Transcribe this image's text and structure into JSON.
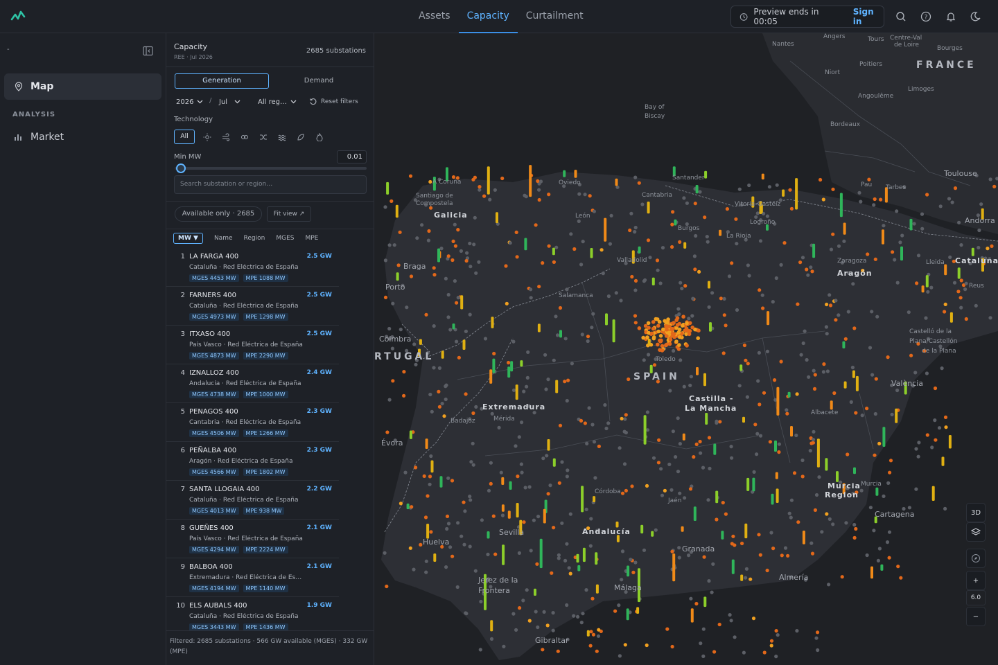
{
  "header": {
    "tabs": [
      {
        "label": "Assets"
      },
      {
        "label": "Capacity"
      },
      {
        "label": "Curtailment"
      }
    ],
    "preview_text": "Preview ends in 00:05",
    "signin_label": "Sign in"
  },
  "sidebar": {
    "dash": "-",
    "map_label": "Map",
    "section_label": "ANALYSIS",
    "market_label": "Market"
  },
  "panel": {
    "title": "Capacity",
    "subtitle": "REE · Jul 2026",
    "count": "2685 substations",
    "mode_generation": "Generation",
    "mode_demand": "Demand",
    "year": "2026",
    "slash": "/",
    "month": "Jul",
    "region": "All reg…",
    "reset_label": "Reset filters",
    "technology_label": "Technology",
    "tech_all": "All",
    "min_mw_label": "Min MW",
    "min_mw_value": "0.01",
    "min_mw_fraction": 0.0,
    "search_placeholder": "Search substation or region…",
    "available_label": "Available only · 2685",
    "fitview_label": "Fit view ↗",
    "sort": {
      "mw": "MW ▼",
      "name": "Name",
      "region": "Region",
      "mges": "MGES",
      "mpe": "MPE"
    },
    "rows": [
      {
        "num": "1",
        "name": "LA FARGA 400",
        "gw": "2.5 GW",
        "loc": "Cataluña · Red Eléctrica de España",
        "mges": "MGES 4453 MW",
        "mpe": "MPE 1088 MW"
      },
      {
        "num": "2",
        "name": "FARNERS 400",
        "gw": "2.5 GW",
        "loc": "Cataluña · Red Eléctrica de España",
        "mges": "MGES 4973 MW",
        "mpe": "MPE 1298 MW"
      },
      {
        "num": "3",
        "name": "ITXASO 400",
        "gw": "2.5 GW",
        "loc": "País Vasco · Red Eléctrica de España",
        "mges": "MGES 4873 MW",
        "mpe": "MPE 2290 MW"
      },
      {
        "num": "4",
        "name": "IZNALLOZ 400",
        "gw": "2.4 GW",
        "loc": "Andalucía · Red Eléctrica de España",
        "mges": "MGES 4738 MW",
        "mpe": "MPE 1000 MW"
      },
      {
        "num": "5",
        "name": "PENAGOS 400",
        "gw": "2.3 GW",
        "loc": "Cantabria · Red Eléctrica de España",
        "mges": "MGES 4506 MW",
        "mpe": "MPE 1266 MW"
      },
      {
        "num": "6",
        "name": "PEÑALBA 400",
        "gw": "2.3 GW",
        "loc": "Aragón · Red Eléctrica de España",
        "mges": "MGES 4566 MW",
        "mpe": "MPE 1802 MW"
      },
      {
        "num": "7",
        "name": "SANTA LLOGAIA 400",
        "gw": "2.2 GW",
        "loc": "Cataluña · Red Eléctrica de España",
        "mges": "MGES 4013 MW",
        "mpe": "MPE 938 MW"
      },
      {
        "num": "8",
        "name": "GUEÑES 400",
        "gw": "2.1 GW",
        "loc": "País Vasco · Red Eléctrica de España",
        "mges": "MGES 4294 MW",
        "mpe": "MPE 2224 MW"
      },
      {
        "num": "9",
        "name": "BALBOA 400",
        "gw": "2.1 GW",
        "loc": "Extremadura · Red Eléctrica de Es…",
        "mges": "MGES 4194 MW",
        "mpe": "MPE 1140 MW"
      },
      {
        "num": "10",
        "name": "ELS AUBALS 400",
        "gw": "1.9 GW",
        "loc": "Cataluña · Red Eléctrica de España",
        "mges": "MGES 3443 MW",
        "mpe": "MPE 1436 MW"
      }
    ],
    "footer": "Filtered: 2685 substations · 566 GW available (MGES) · 332 GW (MPE)"
  },
  "map": {
    "labels": {
      "angers": "Angers",
      "tours": "Tours",
      "centre": "Centre-Val",
      "deloire": "de Loire",
      "nantes": "Nantes",
      "bourges": "Bourges",
      "france": "FRANCE",
      "poitiers": "Poitiers",
      "niort": "Niort",
      "limoges": "Limoges",
      "angouleme": "Angoulême",
      "bay1": "Bay of",
      "bay2": "Biscay",
      "bordeaux": "Bordeaux",
      "toulouse": "Toulouse",
      "pau": "Pau",
      "tarbes": "Tarbes",
      "andorra": "Andorra",
      "acoruna": "A Coruña",
      "santiago1": "Santiago de",
      "santiago2": "Compostela",
      "galicia": "Galicia",
      "oviedo": "Oviedo",
      "santander": "Santander",
      "cantabria": "Cantabria",
      "vitoria": "Vitoria-Gasteiz",
      "leon": "León",
      "burgos": "Burgos",
      "logrono": "Logroño",
      "larioja": "La Rioja",
      "zaragoza": "Zaragoza",
      "aragon": "Aragón",
      "lleida": "Lleida",
      "cataluna": "Cataluña",
      "reus": "Reus",
      "braga": "Braga",
      "porto": "Porto",
      "valladolid": "Valladolid",
      "salamanca": "Salamanca",
      "coimbra": "Coimbra",
      "portugal": "RTUGAL",
      "toledo": "Toledo",
      "spain": "SPAIN",
      "castellon1": "Castelló de la",
      "castellon2": "Plana/Castellón",
      "castellon3": "de la Plana",
      "valencia": "València",
      "extremadura": "Extremadura",
      "castilla1": "Castilla -",
      "castilla2": "La Mancha",
      "badajoz": "Badajoz",
      "merida": "Mérida",
      "albacete": "Albacete",
      "evora": "Évora",
      "murcia1": "Murcia",
      "murcia2": "Region",
      "murcia": "Murcia",
      "cordoba": "Córdoba",
      "jaen": "Jaén",
      "cartagena": "Cartagena",
      "andalucia": "Andalucía",
      "sevilla": "Sevilla",
      "huelva": "Huelva",
      "granada": "Granada",
      "almeria": "Almería",
      "jerez1": "Jerez de la",
      "jerez2": "Frontera",
      "malaga": "Málaga",
      "gibraltar": "Gibraltar"
    },
    "zoom_value": "6.0",
    "btn_3d": "3D",
    "btn_plus": "+",
    "btn_minus": "−"
  }
}
